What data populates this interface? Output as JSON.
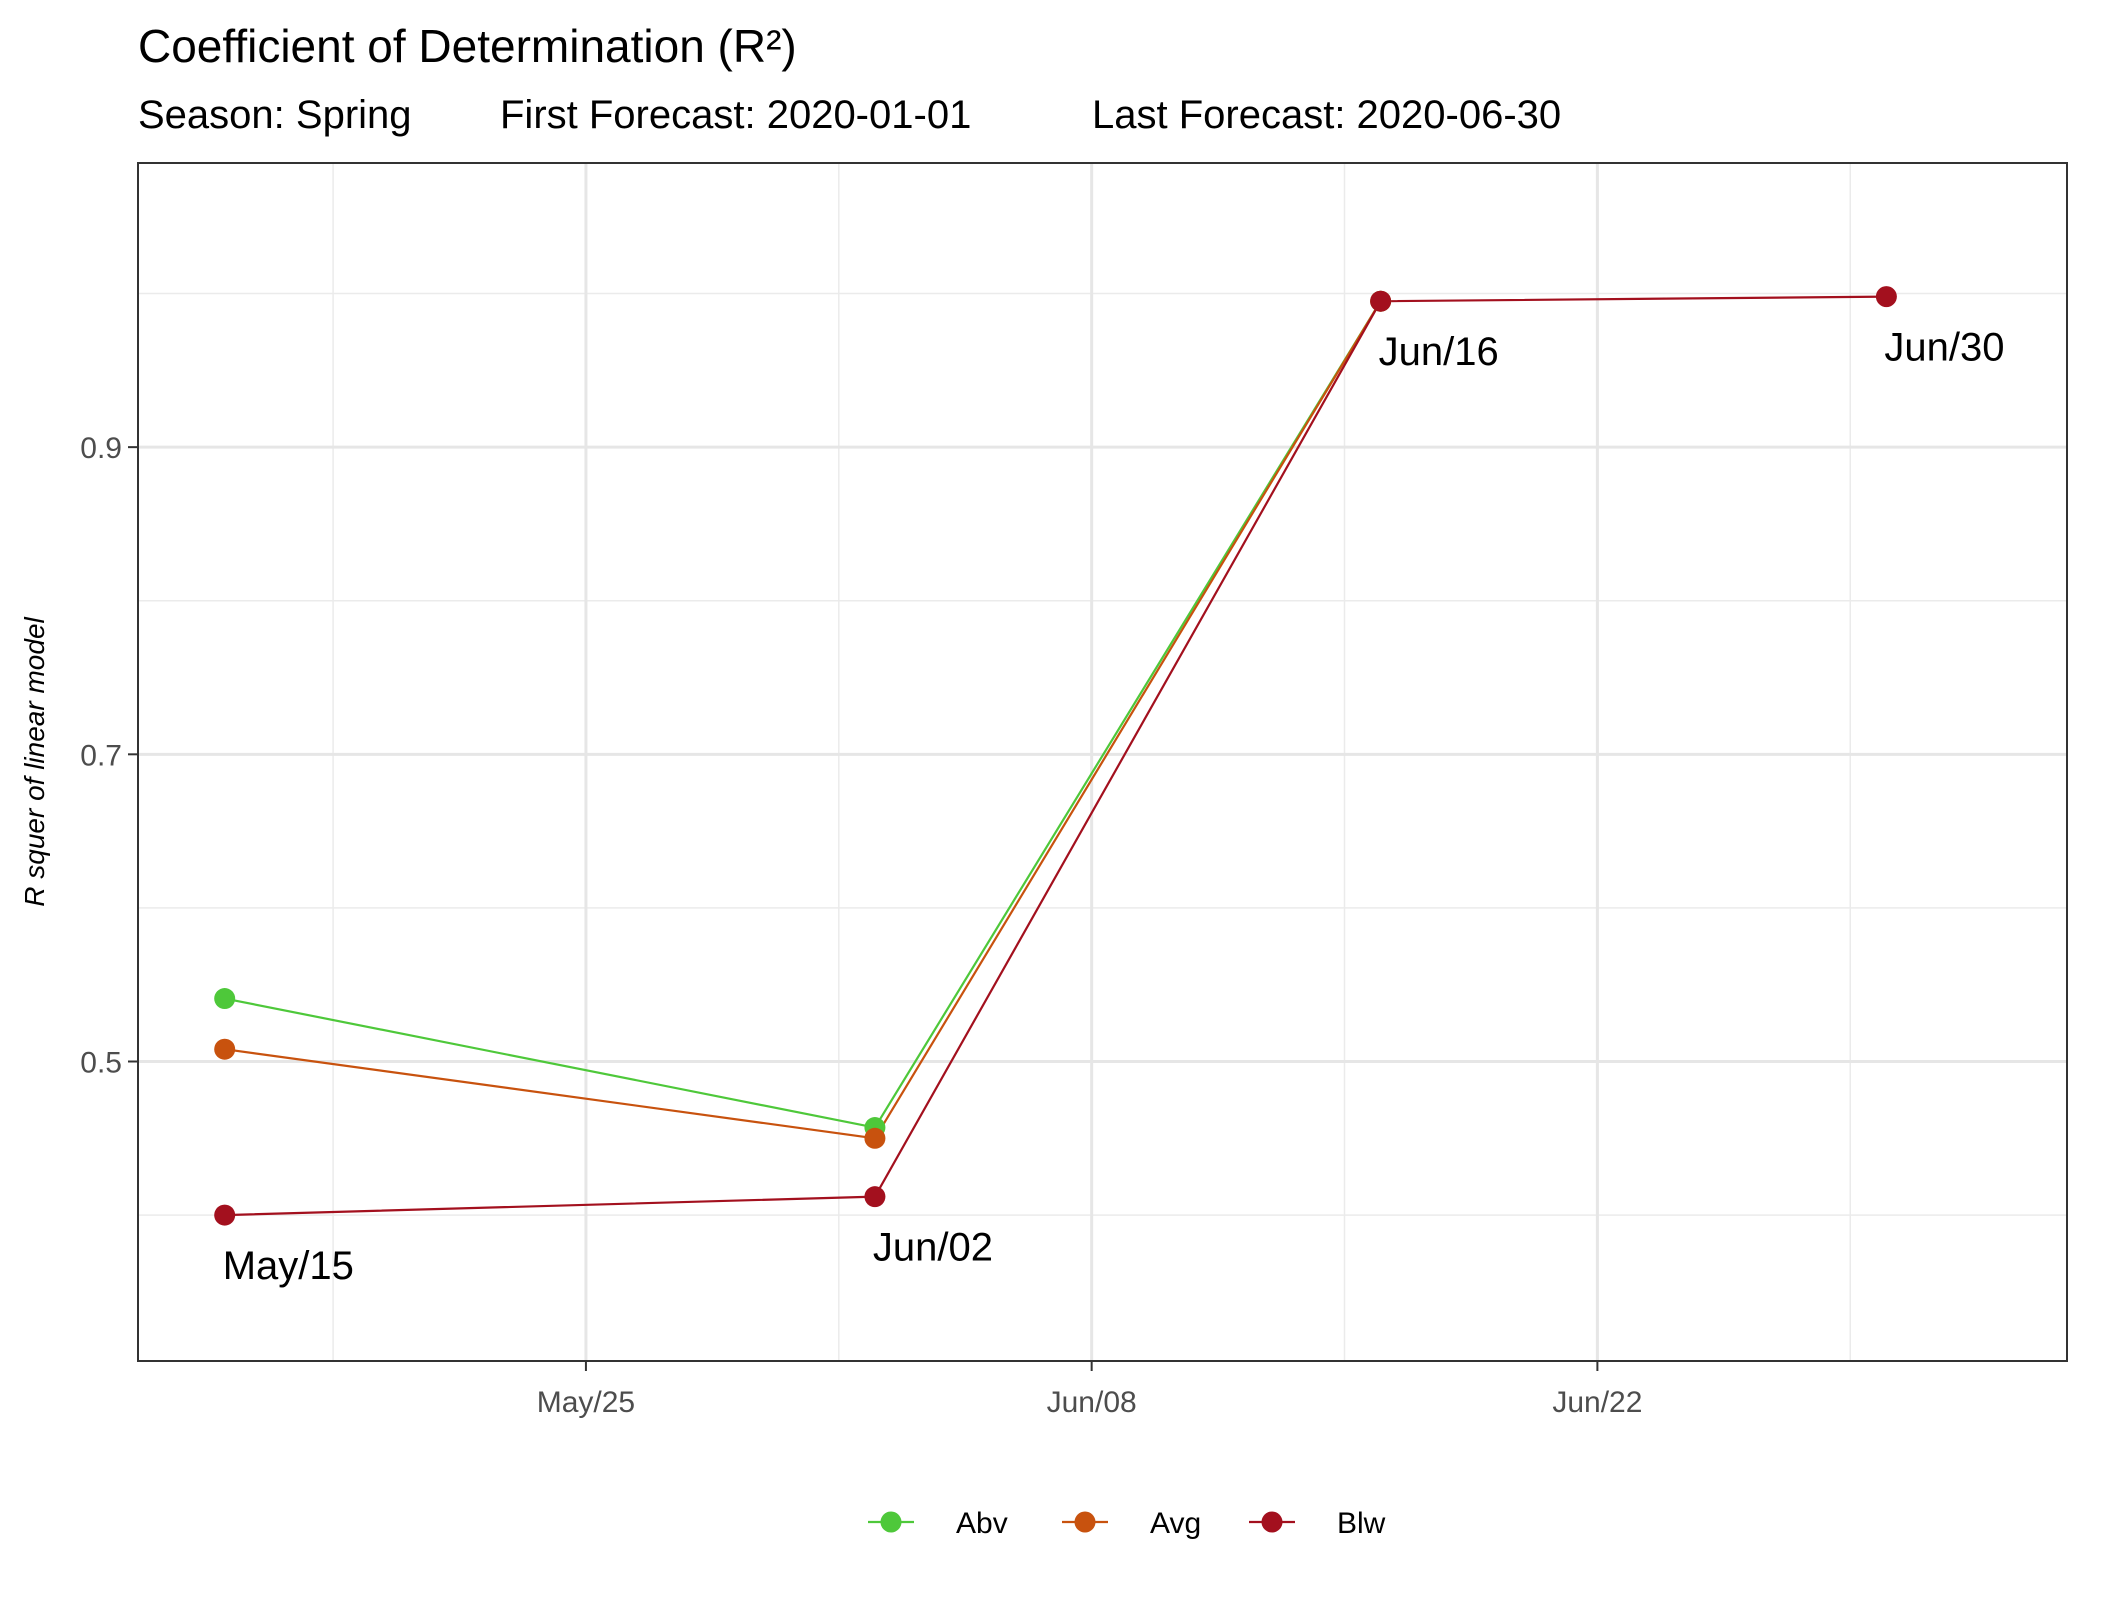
{
  "chart_data": {
    "type": "line",
    "title": "Coefficient of Determination (R²)",
    "subtitle": {
      "season": "Season: Spring",
      "first_forecast": "First Forecast: 2020-01-01",
      "last_forecast": "Last Forecast: 2020-06-30"
    },
    "xlabel": "",
    "ylabel": "R squer of linear model",
    "x_ticks": [
      "2020-05-25",
      "2020-06-08",
      "2020-06-22"
    ],
    "x_tick_labels": [
      "May/25",
      "Jun/08",
      "Jun/22"
    ],
    "y_ticks": [
      0.5,
      0.7,
      0.9
    ],
    "y_tick_labels": [
      "0.5",
      "0.7",
      "0.9"
    ],
    "xlim": [
      "2020-05-12.6",
      "2020-07-05.0"
    ],
    "ylim": [
      0.305,
      1.085
    ],
    "grid": true,
    "legend_position": "bottom",
    "x": [
      "2020-05-15",
      "2020-06-02",
      "2020-06-16",
      "2020-06-30"
    ],
    "series": [
      {
        "name": "Abv",
        "color": "#4ec83a",
        "values": [
          0.541,
          0.457,
          0.995,
          null
        ]
      },
      {
        "name": "Avg",
        "color": "#c8520e",
        "values": [
          0.508,
          0.45,
          0.995,
          null
        ]
      },
      {
        "name": "Blw",
        "color": "#a3101e",
        "values": [
          0.4,
          0.412,
          0.995,
          0.998
        ]
      }
    ],
    "point_labels": [
      {
        "text": "May/15",
        "x": "2020-05-15",
        "y": 0.4
      },
      {
        "text": "Jun/02",
        "x": "2020-06-02",
        "y": 0.412
      },
      {
        "text": "Jun/16",
        "x": "2020-06-16",
        "y": 0.995
      },
      {
        "text": "Jun/30",
        "x": "2020-06-30",
        "y": 0.998
      }
    ]
  }
}
